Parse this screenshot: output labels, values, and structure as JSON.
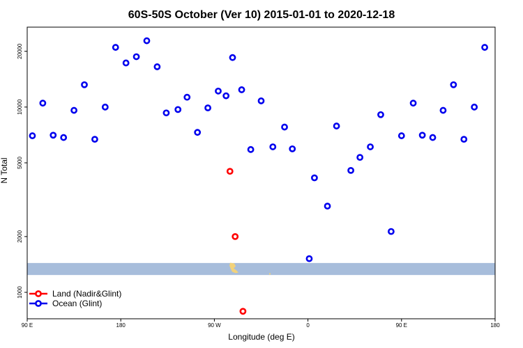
{
  "chart_data": {
    "type": "scatter",
    "title": "60S-50S October (Ver 10)   2015-01-01 to 2020-12-18",
    "xlabel": "Longitude (deg E)",
    "ylabel": "N Total",
    "xlim": [
      90,
      450
    ],
    "ylim": [
      720,
      27000
    ],
    "y_scale": "log",
    "x_ticks": [
      {
        "value": 90,
        "label": "90 E"
      },
      {
        "value": 162,
        "label": "180"
      },
      {
        "value": 234,
        "label": "90 W"
      },
      {
        "value": 306,
        "label": "0"
      },
      {
        "value": 378,
        "label": "90 E"
      },
      {
        "value": 450,
        "label": "180"
      }
    ],
    "y_ticks": [
      {
        "value": 1000,
        "label": "1000"
      },
      {
        "value": 2000,
        "label": "2000"
      },
      {
        "value": 5000,
        "label": "5000"
      },
      {
        "value": 10000,
        "label": "10000"
      },
      {
        "value": 20000,
        "label": "20000"
      }
    ],
    "legend_position": "bottom-left",
    "band": {
      "ymin": 1240,
      "ymax": 1440,
      "color": "#a7bddb"
    },
    "land_color": "#f2d27a",
    "series": [
      {
        "name": "Land (Nadir&Glint)",
        "color": "#ff0000",
        "points": [
          [
            246,
            4500
          ],
          [
            250,
            2000
          ],
          [
            256,
            790
          ]
        ]
      },
      {
        "name": "Ocean (Glint)",
        "color": "#0000ee",
        "points": [
          [
            94,
            7000
          ],
          [
            102,
            10500
          ],
          [
            110,
            7050
          ],
          [
            118,
            6850
          ],
          [
            126,
            9600
          ],
          [
            134,
            13200
          ],
          [
            142,
            6700
          ],
          [
            150,
            10000
          ],
          [
            158,
            21000
          ],
          [
            166,
            17300
          ],
          [
            174,
            18700
          ],
          [
            182,
            22800
          ],
          [
            190,
            16500
          ],
          [
            197,
            9300
          ],
          [
            206,
            9700
          ],
          [
            213,
            11300
          ],
          [
            221,
            7300
          ],
          [
            229,
            9900
          ],
          [
            237,
            12200
          ],
          [
            243,
            11500
          ],
          [
            248,
            18500
          ],
          [
            255,
            12400
          ],
          [
            262,
            5900
          ],
          [
            270,
            10800
          ],
          [
            279,
            6100
          ],
          [
            288,
            7800
          ],
          [
            294,
            5950
          ],
          [
            307,
            1520
          ],
          [
            311,
            4150
          ],
          [
            321,
            2920
          ],
          [
            328,
            7900
          ],
          [
            339,
            4550
          ],
          [
            346,
            5350
          ],
          [
            354,
            6100
          ],
          [
            362,
            9100
          ],
          [
            370,
            2130
          ],
          [
            378,
            7000
          ],
          [
            387,
            10500
          ],
          [
            394,
            7050
          ],
          [
            402,
            6850
          ],
          [
            410,
            9600
          ],
          [
            418,
            13200
          ],
          [
            426,
            6700
          ],
          [
            434,
            10000
          ],
          [
            442,
            21000
          ]
        ]
      }
    ]
  }
}
